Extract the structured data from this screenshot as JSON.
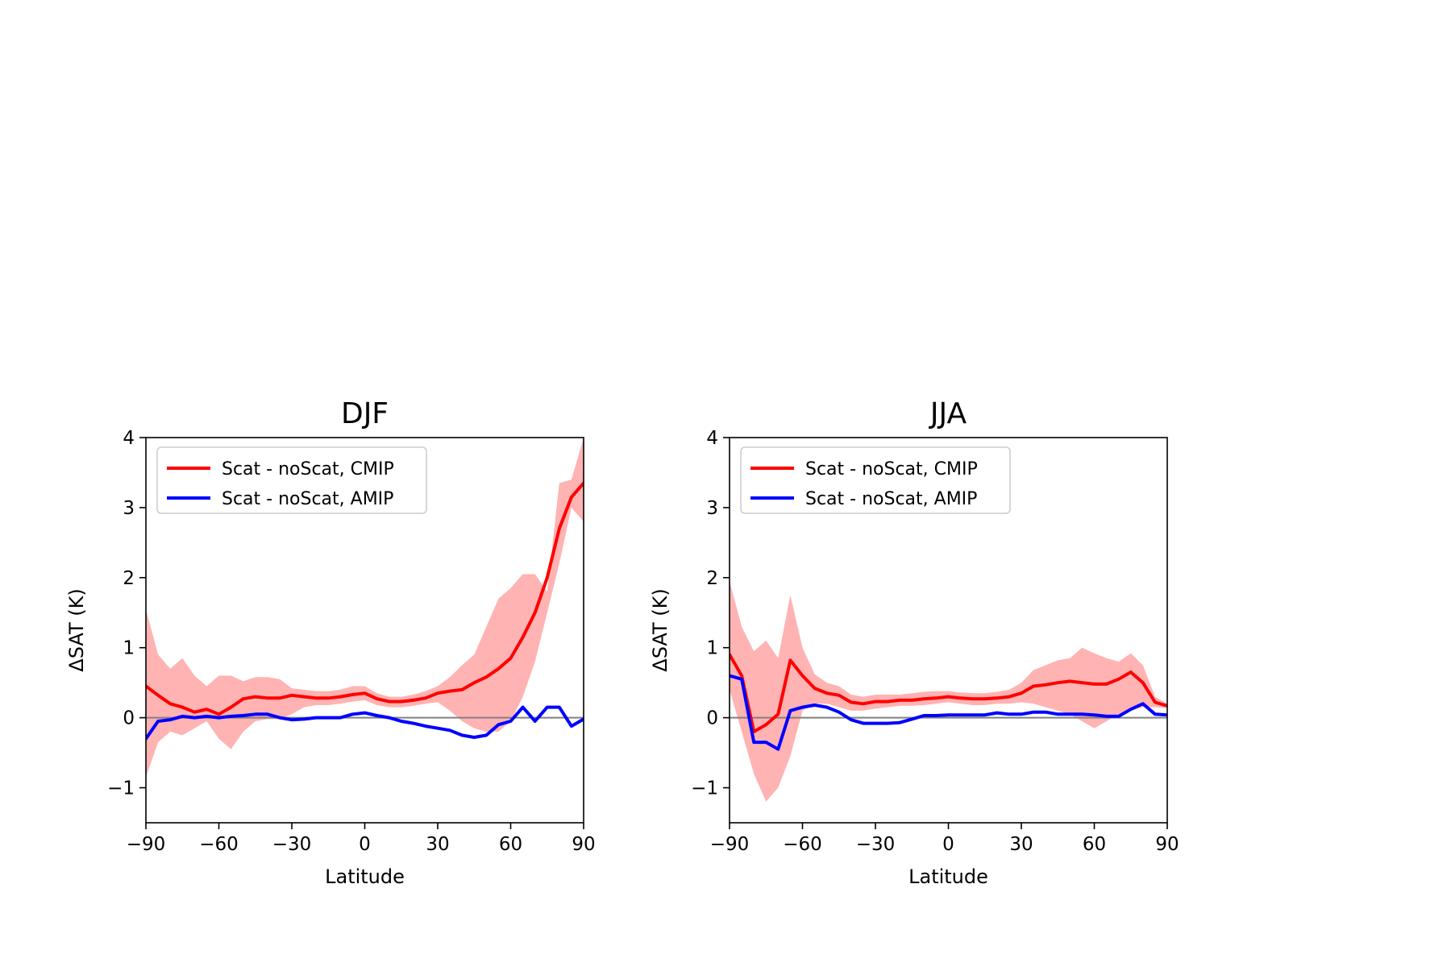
{
  "chart_data": [
    {
      "type": "line",
      "title": "DJF",
      "xlabel": "Latitude",
      "ylabel": "ΔSAT (K)",
      "xlim": [
        -90,
        90
      ],
      "ylim": [
        -1.5,
        4
      ],
      "xticks": [
        -90,
        -60,
        -30,
        0,
        30,
        60,
        90
      ],
      "xtick_labels": [
        "−90",
        "−60",
        "−30",
        "0",
        "30",
        "60",
        "90"
      ],
      "yticks": [
        -1,
        0,
        1,
        2,
        3,
        4
      ],
      "ytick_labels": [
        "−1",
        "0",
        "1",
        "2",
        "3",
        "4"
      ],
      "zero_line": true,
      "grid": false,
      "legend_position": "upper-left",
      "x": [
        -90,
        -85,
        -80,
        -75,
        -70,
        -65,
        -60,
        -55,
        -50,
        -45,
        -40,
        -35,
        -30,
        -25,
        -20,
        -15,
        -10,
        -5,
        0,
        5,
        10,
        15,
        20,
        25,
        30,
        35,
        40,
        45,
        50,
        55,
        60,
        65,
        70,
        75,
        80,
        85,
        90
      ],
      "series": [
        {
          "name": "Scat - noScat, CMIP",
          "color": "#ff0000",
          "values": [
            0.45,
            0.32,
            0.2,
            0.15,
            0.08,
            0.12,
            0.05,
            0.15,
            0.27,
            0.3,
            0.28,
            0.28,
            0.32,
            0.3,
            0.28,
            0.28,
            0.3,
            0.33,
            0.35,
            0.27,
            0.23,
            0.23,
            0.25,
            0.28,
            0.35,
            0.38,
            0.4,
            0.5,
            0.58,
            0.7,
            0.85,
            1.15,
            1.5,
            2.0,
            2.7,
            3.15,
            3.35
          ],
          "band_low": [
            -0.85,
            -0.35,
            -0.2,
            -0.25,
            -0.15,
            -0.05,
            -0.3,
            -0.45,
            -0.2,
            -0.05,
            -0.02,
            -0.02,
            0.05,
            0.15,
            0.18,
            0.18,
            0.2,
            0.23,
            0.25,
            0.18,
            0.15,
            0.15,
            0.17,
            0.2,
            0.22,
            0.1,
            -0.05,
            -0.15,
            -0.2,
            -0.2,
            -0.05,
            0.3,
            0.8,
            1.5,
            2.2,
            3.0,
            2.8
          ],
          "band_high": [
            1.55,
            0.9,
            0.7,
            0.85,
            0.6,
            0.45,
            0.6,
            0.6,
            0.52,
            0.58,
            0.58,
            0.55,
            0.42,
            0.4,
            0.38,
            0.38,
            0.4,
            0.45,
            0.45,
            0.35,
            0.3,
            0.3,
            0.33,
            0.38,
            0.45,
            0.58,
            0.75,
            0.9,
            1.3,
            1.7,
            1.85,
            2.05,
            2.05,
            1.8,
            3.35,
            3.4,
            4.0
          ]
        },
        {
          "name": "Scat - noScat, AMIP",
          "color": "#0000ff",
          "values": [
            -0.3,
            -0.05,
            -0.03,
            0.02,
            0.0,
            0.02,
            0.0,
            0.02,
            0.03,
            0.05,
            0.05,
            0.0,
            -0.03,
            -0.02,
            0.0,
            0.0,
            0.0,
            0.05,
            0.07,
            0.03,
            0.0,
            -0.05,
            -0.08,
            -0.12,
            -0.15,
            -0.18,
            -0.25,
            -0.28,
            -0.25,
            -0.1,
            -0.05,
            0.15,
            -0.05,
            0.15,
            0.15,
            -0.12,
            -0.02
          ]
        }
      ]
    },
    {
      "type": "line",
      "title": "JJA",
      "xlabel": "Latitude",
      "ylabel": "ΔSAT (K)",
      "xlim": [
        -90,
        90
      ],
      "ylim": [
        -1.5,
        4
      ],
      "xticks": [
        -90,
        -60,
        -30,
        0,
        30,
        60,
        90
      ],
      "xtick_labels": [
        "−90",
        "−60",
        "−30",
        "0",
        "30",
        "60",
        "90"
      ],
      "yticks": [
        -1,
        0,
        1,
        2,
        3,
        4
      ],
      "ytick_labels": [
        "−1",
        "0",
        "1",
        "2",
        "3",
        "4"
      ],
      "zero_line": true,
      "grid": false,
      "legend_position": "upper-left",
      "x": [
        -90,
        -85,
        -80,
        -75,
        -70,
        -65,
        -60,
        -55,
        -50,
        -45,
        -40,
        -35,
        -30,
        -25,
        -20,
        -15,
        -10,
        -5,
        0,
        5,
        10,
        15,
        20,
        25,
        30,
        35,
        40,
        45,
        50,
        55,
        60,
        65,
        70,
        75,
        80,
        85,
        90
      ],
      "series": [
        {
          "name": "Scat - noScat, CMIP",
          "color": "#ff0000",
          "values": [
            0.9,
            0.6,
            -0.2,
            -0.1,
            0.05,
            0.82,
            0.6,
            0.42,
            0.35,
            0.32,
            0.22,
            0.2,
            0.23,
            0.23,
            0.25,
            0.25,
            0.27,
            0.28,
            0.3,
            0.28,
            0.27,
            0.27,
            0.28,
            0.3,
            0.35,
            0.45,
            0.47,
            0.5,
            0.52,
            0.5,
            0.48,
            0.48,
            0.55,
            0.65,
            0.5,
            0.22,
            0.17
          ]
        },
        {
          "name": "Scat - noScat, AMIP",
          "color": "#0000ff",
          "values": [
            0.6,
            0.55,
            -0.35,
            -0.35,
            -0.45,
            0.1,
            0.15,
            0.18,
            0.15,
            0.08,
            -0.03,
            -0.08,
            -0.08,
            -0.08,
            -0.07,
            -0.02,
            0.03,
            0.03,
            0.04,
            0.04,
            0.04,
            0.04,
            0.07,
            0.05,
            0.05,
            0.08,
            0.08,
            0.05,
            0.05,
            0.05,
            0.04,
            0.02,
            0.02,
            0.12,
            0.2,
            0.05,
            0.04
          ]
        }
      ],
      "band_series": 0,
      "band_low": [
        0.4,
        -0.2,
        -0.8,
        -1.2,
        -1.0,
        -0.55,
        0.1,
        0.2,
        0.2,
        0.15,
        0.1,
        0.1,
        0.13,
        0.15,
        0.17,
        0.17,
        0.18,
        0.2,
        0.22,
        0.2,
        0.18,
        0.18,
        0.2,
        0.2,
        0.22,
        0.2,
        0.15,
        0.1,
        0.05,
        -0.05,
        -0.15,
        -0.05,
        0.05,
        0.1,
        0.15,
        0.15,
        0.14
      ],
      "band_high": [
        1.95,
        1.3,
        0.95,
        1.1,
        0.85,
        1.75,
        1.0,
        0.62,
        0.5,
        0.45,
        0.33,
        0.3,
        0.33,
        0.33,
        0.33,
        0.35,
        0.37,
        0.38,
        0.38,
        0.36,
        0.35,
        0.35,
        0.37,
        0.4,
        0.5,
        0.68,
        0.75,
        0.82,
        0.85,
        1.0,
        0.92,
        0.85,
        0.8,
        0.92,
        0.75,
        0.3,
        0.2
      ]
    }
  ]
}
